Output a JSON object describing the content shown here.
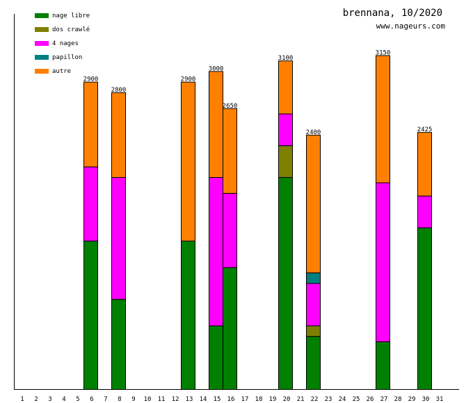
{
  "chart_data": {
    "type": "bar",
    "stacked": true,
    "title": "brennana, 10/2020",
    "subtitle": "www.nageurs.com",
    "xlabel": "",
    "ylabel": "",
    "ylim": [
      0,
      3540
    ],
    "grid": false,
    "legend_position": "top-left",
    "categories": [
      "1",
      "2",
      "3",
      "4",
      "5",
      "6",
      "7",
      "8",
      "9",
      "10",
      "11",
      "12",
      "13",
      "14",
      "15",
      "16",
      "17",
      "18",
      "19",
      "20",
      "21",
      "22",
      "23",
      "24",
      "25",
      "26",
      "27",
      "28",
      "29",
      "30",
      "31"
    ],
    "series": [
      {
        "name": "nage libre",
        "color": "#008000",
        "values": [
          0,
          0,
          0,
          0,
          0,
          1400,
          0,
          850,
          0,
          0,
          0,
          0,
          1400,
          0,
          600,
          1150,
          0,
          0,
          0,
          2000,
          0,
          500,
          0,
          0,
          0,
          0,
          450,
          0,
          0,
          1525,
          0
        ]
      },
      {
        "name": "dos crawlé",
        "color": "#808000",
        "values": [
          0,
          0,
          0,
          0,
          0,
          0,
          0,
          0,
          0,
          0,
          0,
          0,
          0,
          0,
          0,
          0,
          0,
          0,
          0,
          300,
          0,
          100,
          0,
          0,
          0,
          0,
          0,
          0,
          0,
          0,
          0
        ]
      },
      {
        "name": "4 nages",
        "color": "#ff00ff",
        "values": [
          0,
          0,
          0,
          0,
          0,
          700,
          0,
          1150,
          0,
          0,
          0,
          0,
          0,
          0,
          1400,
          700,
          0,
          0,
          0,
          300,
          0,
          400,
          0,
          0,
          0,
          0,
          1500,
          0,
          0,
          300,
          0
        ]
      },
      {
        "name": "papillon",
        "color": "#008080",
        "values": [
          0,
          0,
          0,
          0,
          0,
          0,
          0,
          0,
          0,
          0,
          0,
          0,
          0,
          0,
          0,
          0,
          0,
          0,
          0,
          0,
          0,
          100,
          0,
          0,
          0,
          0,
          0,
          0,
          0,
          0,
          0
        ]
      },
      {
        "name": "autre",
        "color": "#ff8000",
        "values": [
          0,
          0,
          0,
          0,
          0,
          800,
          0,
          800,
          0,
          0,
          0,
          0,
          1500,
          0,
          1000,
          800,
          0,
          0,
          0,
          500,
          0,
          1300,
          0,
          0,
          0,
          0,
          1200,
          0,
          0,
          600,
          0
        ]
      }
    ],
    "totals": [
      null,
      null,
      null,
      null,
      null,
      "2900",
      null,
      "2800",
      null,
      null,
      null,
      null,
      "2900",
      null,
      "3000",
      "2650",
      null,
      null,
      null,
      "3100",
      null,
      "2400",
      null,
      null,
      null,
      null,
      "3150",
      null,
      null,
      "2425",
      null
    ]
  }
}
